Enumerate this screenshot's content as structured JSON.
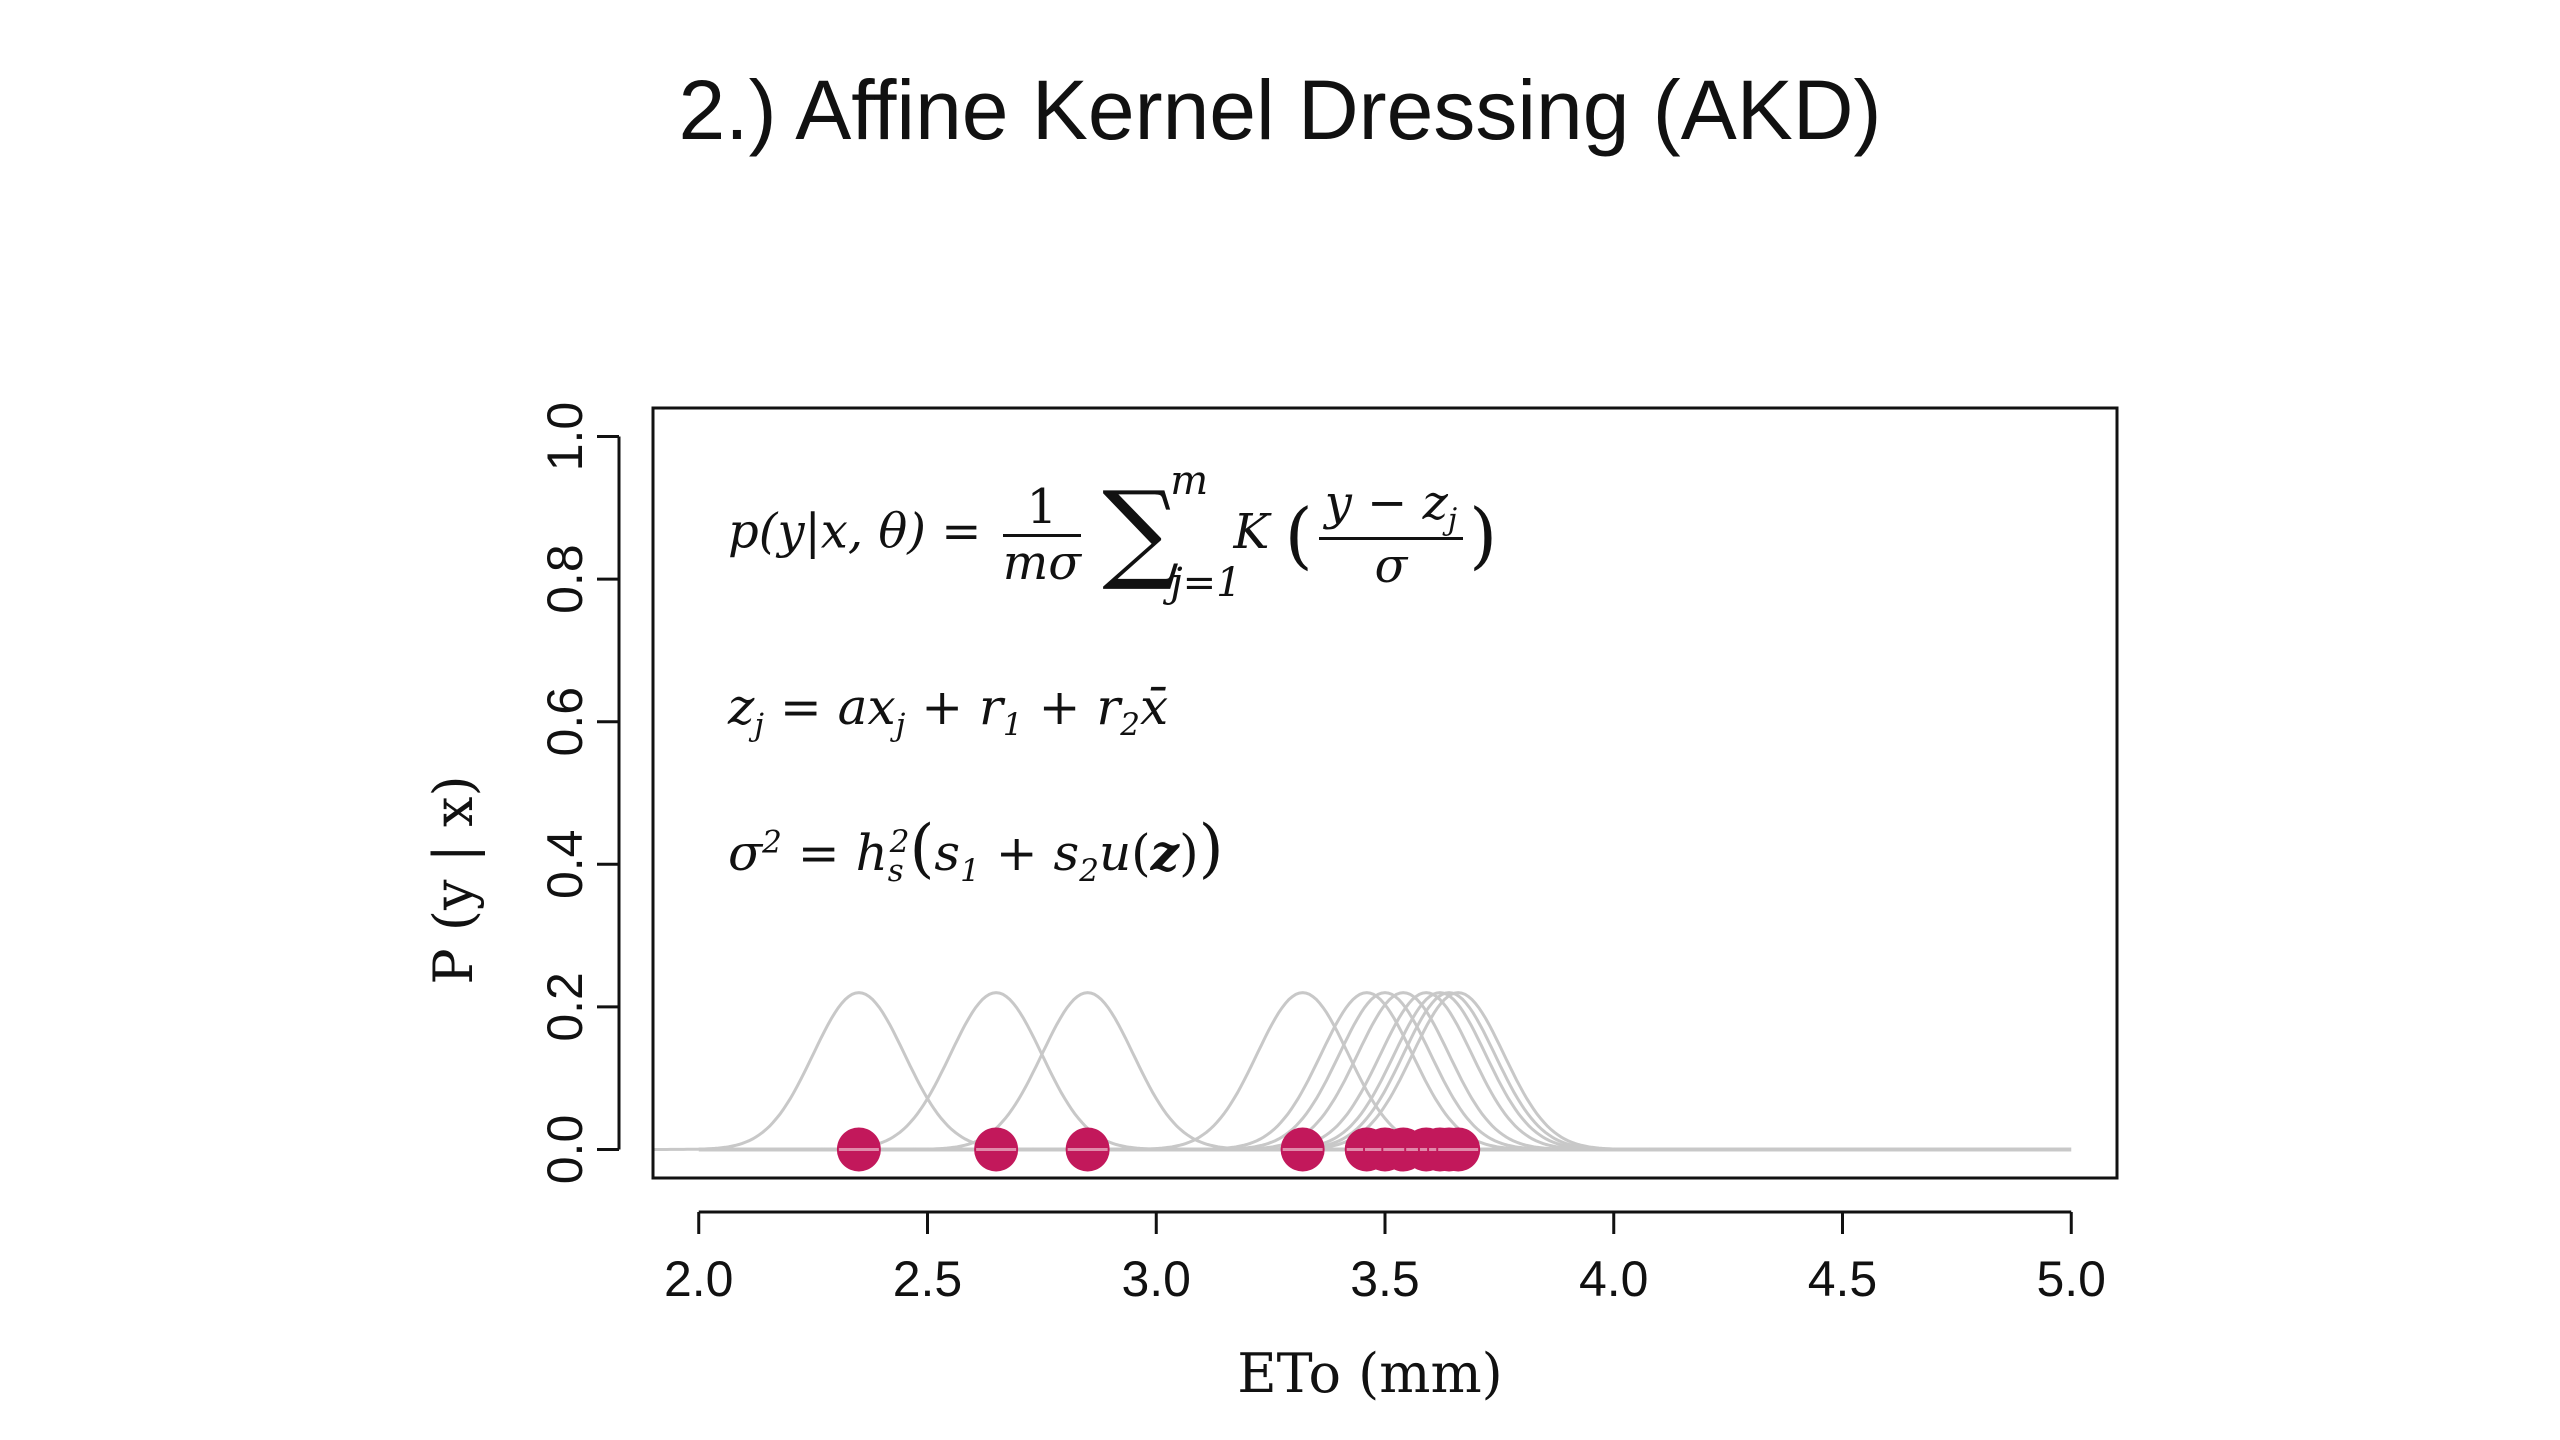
{
  "slide": {
    "title": "2.) Affine Kernel Dressing (AKD)"
  },
  "chart_data": {
    "type": "line",
    "xlabel": "ETo (mm)",
    "ylabel": "P (y | x)",
    "xlim": [
      1.9,
      5.1
    ],
    "ylim": [
      -0.04,
      1.04
    ],
    "xticks": [
      2.0,
      2.5,
      3.0,
      3.5,
      4.0,
      4.5,
      5.0
    ],
    "xtick_labels": [
      "2.0",
      "2.5",
      "3.0",
      "3.5",
      "4.0",
      "4.5",
      "5.0"
    ],
    "yticks": [
      0.0,
      0.2,
      0.4,
      0.6,
      0.8,
      1.0
    ],
    "ytick_labels": [
      "0.0",
      "0.2",
      "0.4",
      "0.6",
      "0.8",
      "1.0"
    ],
    "grid": false,
    "line_color": "#c8c8c8",
    "point_color": "#c2185b",
    "kernel_peak": 0.22,
    "kernel_sd": 0.1,
    "baseline_x": [
      2.0,
      5.0
    ],
    "kernel_centers": [
      2.35,
      2.65,
      2.85,
      3.32,
      3.46,
      3.5,
      3.54,
      3.59,
      3.62,
      3.64,
      3.66
    ],
    "points_x": [
      2.35,
      2.65,
      2.85,
      3.32,
      3.46,
      3.5,
      3.54,
      3.59,
      3.62,
      3.64,
      3.66
    ],
    "points_y": [
      0,
      0,
      0,
      0,
      0,
      0,
      0,
      0,
      0,
      0,
      0
    ]
  },
  "equations": {
    "eq1_lhs": "p(y|x, θ) =",
    "eq1_num": "1",
    "eq1_den": "mσ",
    "eq1_sum_upper": "m",
    "eq1_sum_lower": "j=1",
    "eq1_kernel": "K",
    "eq1_frac_num": "y − z",
    "eq1_frac_num_sub": "j",
    "eq1_frac_den": "σ",
    "eq2": "z_j = ax_j + r_1 + r_2 x̄",
    "eq3": "σ² = h_s² (s_1 + s_2 u(z))"
  }
}
